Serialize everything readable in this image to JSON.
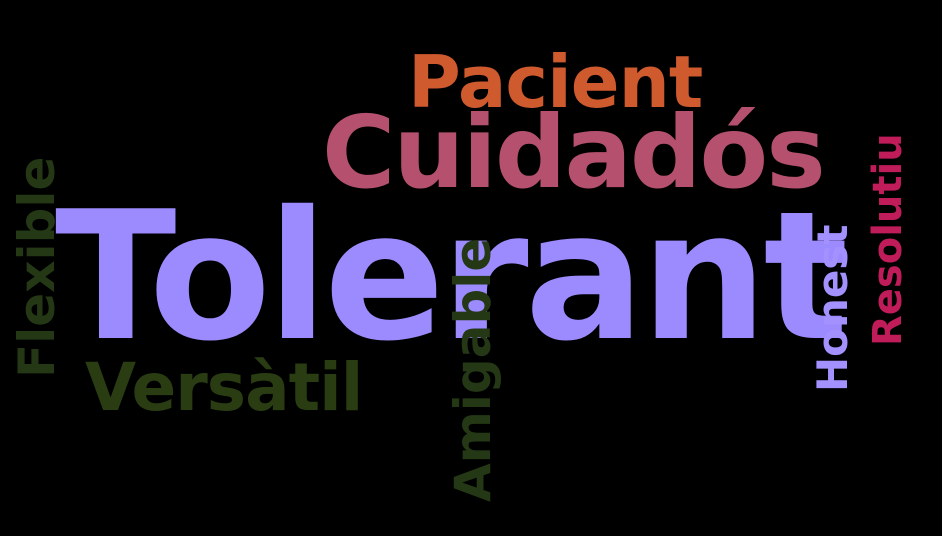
{
  "words": [
    {
      "id": "tolerant",
      "text": "Tolerant",
      "color": "#9c8aff"
    },
    {
      "id": "cuidados",
      "text": "Cuidadós",
      "color": "#b5516e"
    },
    {
      "id": "pacient",
      "text": "Pacient",
      "color": "#cf5a2e"
    },
    {
      "id": "versatil",
      "text": "Versàtil",
      "color": "#2a3d12"
    },
    {
      "id": "flexible",
      "text": "Flexible",
      "color": "#243815",
      "orientation": "vertical"
    },
    {
      "id": "amigable",
      "text": "Amigable",
      "color": "#243815",
      "orientation": "vertical"
    },
    {
      "id": "honest",
      "text": "Honest",
      "color": "#a391ff",
      "orientation": "vertical"
    },
    {
      "id": "resolutiu",
      "text": "Resolutiu",
      "color": "#c01c5a",
      "orientation": "vertical"
    }
  ],
  "background": "#000000"
}
